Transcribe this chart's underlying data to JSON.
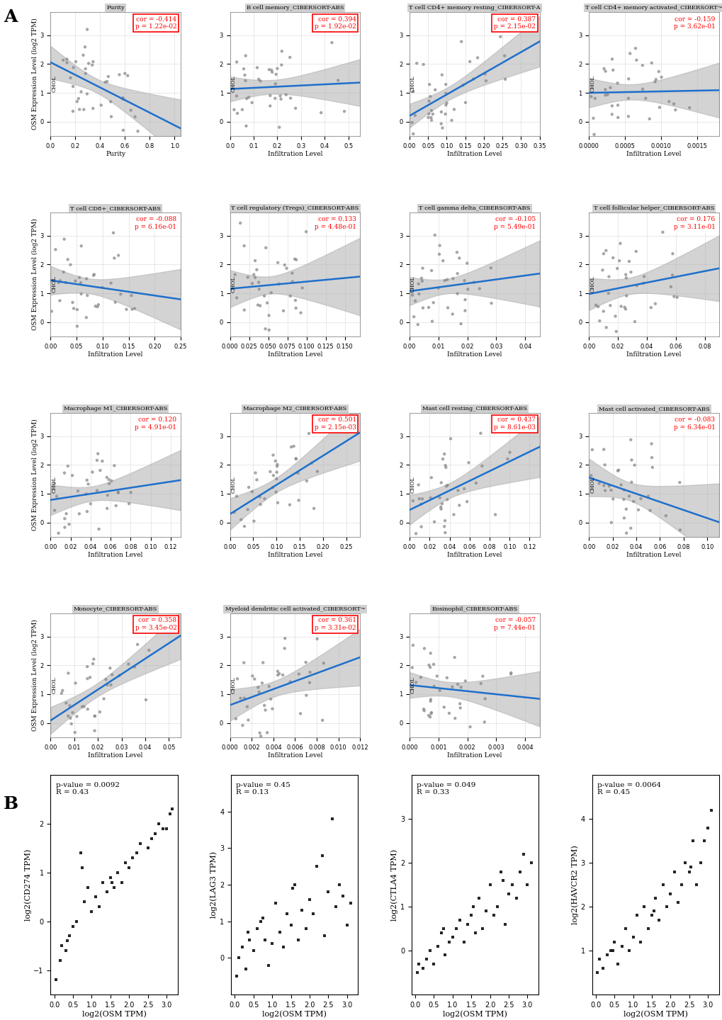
{
  "panel_A": {
    "rows": [
      [
        {
          "title": "Purity",
          "cor": -0.414,
          "p": "1.22e-02",
          "significant": true,
          "xlabel": "Purity",
          "xlim": [
            0.0,
            1.05
          ],
          "xticks": [
            0.25,
            0.5,
            0.75,
            1.0
          ]
        },
        {
          "title": "B cell memory_CIBERSORT-ABS",
          "cor": 0.394,
          "p": "1.92e-02",
          "significant": true,
          "xlabel": "Infiltration Level",
          "xlim": [
            0.0,
            0.55
          ],
          "xticks": [
            0.0,
            0.1,
            0.2,
            0.3,
            0.4,
            0.5
          ]
        },
        {
          "title": "T cell CD4+ memory resting_CIBERSORT-A",
          "cor": 0.387,
          "p": "2.15e-02",
          "significant": true,
          "xlabel": "Infiltration Level",
          "xlim": [
            0.0,
            0.35
          ],
          "xticks": [
            0.0,
            0.1,
            0.2,
            0.3
          ]
        },
        {
          "title": "T cell CD4+ memory activated_CIBERSORT~",
          "cor": -0.159,
          "p": "3.62e-01",
          "significant": false,
          "xlabel": "Infiltration Level",
          "xlim": [
            0.0,
            0.0018
          ],
          "xticks": [
            0.0,
            0.0005,
            0.001,
            0.0015
          ]
        }
      ],
      [
        {
          "title": "T cell CD8+_CIBERSORT-ABS",
          "cor": -0.088,
          "p": "6.16e-01",
          "significant": false,
          "xlabel": "Infiltration Level",
          "xlim": [
            0.0,
            0.25
          ],
          "xticks": [
            0.0,
            0.1,
            0.2
          ]
        },
        {
          "title": "T cell regulatory (Tregs)_CIBERSORT-ABS",
          "cor": 0.133,
          "p": "4.48e-01",
          "significant": false,
          "xlabel": "Infiltration Level",
          "xlim": [
            0.0,
            0.17
          ],
          "xticks": [
            0.0,
            0.05,
            0.1,
            0.15
          ]
        },
        {
          "title": "T cell gamma delta_CIBERSORT-ABS",
          "cor": -0.105,
          "p": "5.49e-01",
          "significant": false,
          "xlabel": "Infiltration Level",
          "xlim": [
            0.0,
            0.045
          ],
          "xticks": [
            0.0,
            0.01,
            0.02,
            0.03,
            0.04
          ]
        },
        {
          "title": "T cell follicular helper_CIBERSORT-ABS",
          "cor": 0.176,
          "p": "3.11e-01",
          "significant": false,
          "xlabel": "Infiltration Level",
          "xlim": [
            0.0,
            0.09
          ],
          "xticks": [
            0.0,
            0.02,
            0.04,
            0.06,
            0.08
          ]
        }
      ],
      [
        {
          "title": "Macrophage M1_CIBERSORT-ABS",
          "cor": 0.12,
          "p": "4.91e-01",
          "significant": false,
          "xlabel": "Infiltration Level",
          "xlim": [
            0.0,
            0.13
          ],
          "xticks": [
            0.0,
            0.05,
            0.1
          ]
        },
        {
          "title": "Macrophage M2_CIBERSORT-ABS",
          "cor": 0.501,
          "p": "2.15e-03",
          "significant": true,
          "xlabel": "Infiltration Level",
          "xlim": [
            0.0,
            0.28
          ],
          "xticks": [
            0.0,
            0.1,
            0.2
          ]
        },
        {
          "title": "Mast cell resting_CIBERSORT-ABS",
          "cor": 0.437,
          "p": "8.61e-03",
          "significant": true,
          "xlabel": "Infiltration Level",
          "xlim": [
            0.0,
            0.13
          ],
          "xticks": [
            0.0,
            0.04,
            0.08,
            0.12
          ]
        },
        {
          "title": "Mast cell activated_CIBERSORT-ABS",
          "cor": -0.083,
          "p": "6.34e-01",
          "significant": false,
          "xlabel": "Infiltration Level",
          "xlim": [
            0.0,
            0.11
          ],
          "xticks": [
            0.0,
            0.025,
            0.05,
            0.075,
            0.1
          ]
        }
      ],
      [
        {
          "title": "Monocyte_CIBERSORT-ABS",
          "cor": 0.358,
          "p": "3.45e-02",
          "significant": true,
          "xlabel": "Infiltration Level",
          "xlim": [
            0.0,
            0.055
          ],
          "xticks": [
            0.0,
            0.01,
            0.02,
            0.03,
            0.04,
            0.05
          ]
        },
        {
          "title": "Myeloid dendritic cell activated_CIBERSORT~",
          "cor": 0.361,
          "p": "3.31e-02",
          "significant": true,
          "xlabel": "Infiltration Level",
          "xlim": [
            0.0,
            0.012
          ],
          "xticks": [
            0.0,
            0.005,
            0.01
          ]
        },
        {
          "title": "Eosinophil_CIBERSORT-ABS",
          "cor": -0.057,
          "p": "7.44e-01",
          "significant": false,
          "xlabel": "Infiltration Level",
          "xlim": [
            0.0,
            0.0045
          ],
          "xticks": [
            0.0,
            0.001,
            0.002,
            0.003,
            0.004
          ]
        },
        null
      ]
    ],
    "ylim": [
      -0.5,
      3.8
    ],
    "yticks": [
      0,
      1,
      2,
      3
    ],
    "ylabel": "OSM Expression Level (log2 TPM)"
  },
  "panel_B": {
    "plots": [
      {
        "ylabel": "log2(CD274 TPM)",
        "xlabel": "log2(OSM TPM)",
        "pval": "0.0092",
        "R": "0.43",
        "xlim": [
          -0.1,
          3.3
        ],
        "ylim": [
          -1.5,
          3.0
        ],
        "xticks": [
          0.0,
          0.5,
          1.0,
          1.5,
          2.0,
          2.5,
          3.0
        ],
        "yticks": [
          -1,
          0,
          1,
          2
        ],
        "x": [
          0.05,
          0.15,
          0.2,
          0.3,
          0.4,
          0.5,
          0.6,
          0.7,
          0.8,
          0.9,
          1.0,
          1.1,
          1.2,
          1.3,
          1.4,
          1.5,
          1.6,
          1.7,
          1.8,
          1.9,
          2.0,
          2.1,
          2.2,
          2.3,
          2.5,
          2.6,
          2.7,
          2.8,
          2.9,
          3.0,
          3.1,
          3.15,
          0.35,
          0.75,
          1.55
        ],
        "y": [
          -1.2,
          -0.8,
          -0.5,
          -0.6,
          -0.3,
          -0.1,
          0.0,
          1.4,
          0.4,
          0.7,
          0.2,
          0.5,
          0.3,
          0.8,
          0.6,
          0.9,
          0.7,
          1.0,
          0.8,
          1.2,
          1.1,
          1.3,
          1.4,
          1.6,
          1.5,
          1.7,
          1.8,
          2.0,
          1.9,
          1.9,
          2.2,
          2.3,
          -0.4,
          1.1,
          0.8
        ]
      },
      {
        "ylabel": "log2(LAG3 TPM)",
        "xlabel": "log2(OSM TPM)",
        "pval": "0.45",
        "R": "0.13",
        "xlim": [
          -0.1,
          3.3
        ],
        "ylim": [
          -1.0,
          5.0
        ],
        "xticks": [
          0.0,
          0.5,
          1.0,
          1.5,
          2.0,
          2.5,
          3.0
        ],
        "yticks": [
          0,
          1,
          2,
          3,
          4
        ],
        "x": [
          0.05,
          0.1,
          0.2,
          0.3,
          0.4,
          0.5,
          0.6,
          0.7,
          0.8,
          0.9,
          1.0,
          1.1,
          1.2,
          1.3,
          1.4,
          1.5,
          1.6,
          1.7,
          1.8,
          1.9,
          2.0,
          2.1,
          2.2,
          2.4,
          2.5,
          2.6,
          2.7,
          2.8,
          2.9,
          3.0,
          3.1,
          0.35,
          0.75,
          1.55,
          2.35
        ],
        "y": [
          -0.5,
          0.0,
          0.3,
          -0.3,
          0.5,
          0.2,
          0.8,
          1.0,
          0.5,
          -0.2,
          0.4,
          1.5,
          0.7,
          0.3,
          1.2,
          0.9,
          2.0,
          0.5,
          1.3,
          0.8,
          1.6,
          1.2,
          2.5,
          0.6,
          1.8,
          3.8,
          1.4,
          2.0,
          1.7,
          0.9,
          1.5,
          0.7,
          1.1,
          1.9,
          2.8
        ]
      },
      {
        "ylabel": "log2(CTLA4 TPM)",
        "xlabel": "log2(OSM TPM)",
        "pval": "0.049",
        "R": "0.33",
        "xlim": [
          -0.1,
          3.3
        ],
        "ylim": [
          -1.0,
          4.0
        ],
        "xticks": [
          0.0,
          0.5,
          1.0,
          1.5,
          2.0,
          2.5,
          3.0
        ],
        "yticks": [
          0,
          1,
          2,
          3
        ],
        "x": [
          0.05,
          0.1,
          0.2,
          0.3,
          0.5,
          0.6,
          0.7,
          0.8,
          0.9,
          1.0,
          1.1,
          1.2,
          1.3,
          1.4,
          1.5,
          1.6,
          1.7,
          1.8,
          1.9,
          2.0,
          2.1,
          2.2,
          2.3,
          2.4,
          2.5,
          2.6,
          2.7,
          2.8,
          2.9,
          3.0,
          3.1,
          0.4,
          0.75,
          1.55,
          2.35
        ],
        "y": [
          -0.5,
          -0.3,
          -0.4,
          -0.2,
          -0.3,
          0.1,
          0.4,
          -0.1,
          0.2,
          0.3,
          0.5,
          0.7,
          0.2,
          0.6,
          0.8,
          0.4,
          1.2,
          0.5,
          0.9,
          1.5,
          0.8,
          1.0,
          1.8,
          0.6,
          1.3,
          1.5,
          1.2,
          1.8,
          2.2,
          1.5,
          2.0,
          0.0,
          0.5,
          1.0,
          1.6
        ]
      },
      {
        "ylabel": "log2(HAVCR2 TPM)",
        "xlabel": "log2(OSM TPM)",
        "pval": "0.0064",
        "R": "0.45",
        "xlim": [
          -0.1,
          3.3
        ],
        "ylim": [
          0.0,
          5.0
        ],
        "xticks": [
          0.0,
          0.5,
          1.0,
          1.5,
          2.0,
          2.5,
          3.0
        ],
        "yticks": [
          1,
          2,
          3,
          4
        ],
        "x": [
          0.05,
          0.1,
          0.2,
          0.3,
          0.4,
          0.5,
          0.6,
          0.7,
          0.8,
          0.9,
          1.0,
          1.1,
          1.2,
          1.3,
          1.4,
          1.5,
          1.6,
          1.7,
          1.8,
          1.9,
          2.0,
          2.1,
          2.2,
          2.3,
          2.4,
          2.5,
          2.6,
          2.7,
          2.8,
          2.9,
          3.0,
          3.1,
          0.45,
          1.55,
          2.55
        ],
        "y": [
          0.5,
          0.8,
          0.6,
          0.9,
          1.0,
          1.2,
          0.7,
          1.1,
          1.5,
          1.0,
          1.3,
          1.8,
          1.2,
          2.0,
          1.5,
          1.8,
          2.2,
          1.7,
          2.5,
          2.0,
          2.3,
          2.8,
          2.1,
          2.5,
          3.0,
          2.8,
          3.5,
          2.5,
          3.0,
          3.5,
          3.8,
          4.2,
          1.0,
          1.9,
          2.9
        ]
      }
    ]
  },
  "colors": {
    "background": "#ffffff",
    "plot_bg": "#ffffff",
    "scatter_A": "#888888",
    "scatter_B": "#000000",
    "line": "#1e6fcc",
    "ci_fill": "#b0b0b0",
    "text_red": "#ff0000",
    "title_bg": "#d0d0d0"
  }
}
